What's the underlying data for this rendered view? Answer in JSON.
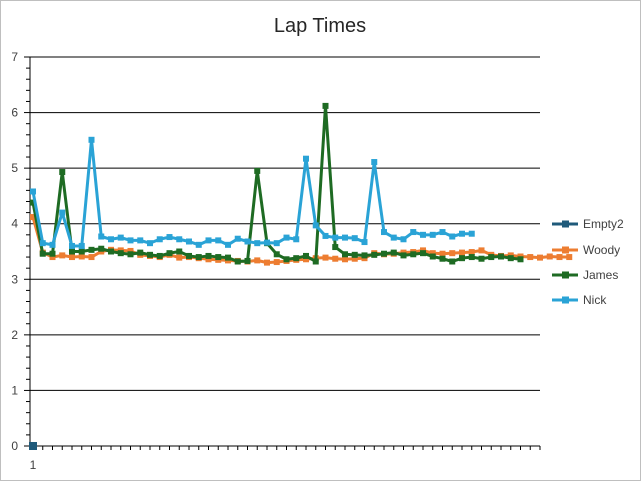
{
  "chart_data": {
    "type": "line",
    "title": "Lap Times",
    "xlabel": "",
    "ylabel": "",
    "ylim": [
      0,
      7
    ],
    "yticks": [
      0,
      1,
      2,
      3,
      4,
      5,
      6,
      7
    ],
    "x_tick_labels": [
      "1"
    ],
    "grid": true,
    "legend_position": "right",
    "series": [
      {
        "name": "Empty2",
        "color": "#1f5a7a",
        "values": [
          0
        ]
      },
      {
        "name": "Woody",
        "color": "#ed7d31",
        "values": [
          4.12,
          3.48,
          3.4,
          3.43,
          3.4,
          3.41,
          3.4,
          3.5,
          3.53,
          3.52,
          3.51,
          3.44,
          3.42,
          3.4,
          3.44,
          3.39,
          3.4,
          3.38,
          3.36,
          3.35,
          3.34,
          3.33,
          3.32,
          3.34,
          3.3,
          3.31,
          3.33,
          3.35,
          3.36,
          3.38,
          3.39,
          3.37,
          3.36,
          3.37,
          3.38,
          3.47,
          3.45,
          3.46,
          3.48,
          3.49,
          3.52,
          3.47,
          3.46,
          3.47,
          3.48,
          3.49,
          3.52,
          3.44,
          3.42,
          3.43,
          3.41,
          3.4,
          3.39,
          3.41,
          3.4,
          3.4
        ]
      },
      {
        "name": "James",
        "color": "#1e6b23",
        "values": [
          4.38,
          3.46,
          3.46,
          4.93,
          3.5,
          3.5,
          3.53,
          3.55,
          3.5,
          3.47,
          3.45,
          3.48,
          3.44,
          3.42,
          3.47,
          3.5,
          3.42,
          3.4,
          3.42,
          3.4,
          3.39,
          3.32,
          3.33,
          4.95,
          3.65,
          3.45,
          3.36,
          3.38,
          3.42,
          3.32,
          6.12,
          3.58,
          3.45,
          3.44,
          3.43,
          3.44,
          3.46,
          3.48,
          3.43,
          3.45,
          3.47,
          3.41,
          3.37,
          3.32,
          3.38,
          3.4,
          3.37,
          3.4,
          3.41,
          3.38,
          3.36
        ]
      },
      {
        "name": "Nick",
        "color": "#2aa3d6",
        "values": [
          4.58,
          3.65,
          3.62,
          4.2,
          3.6,
          3.6,
          5.51,
          3.77,
          3.72,
          3.75,
          3.7,
          3.7,
          3.65,
          3.72,
          3.76,
          3.72,
          3.68,
          3.62,
          3.7,
          3.7,
          3.62,
          3.73,
          3.68,
          3.65,
          3.66,
          3.65,
          3.75,
          3.72,
          5.17,
          3.97,
          3.78,
          3.75,
          3.75,
          3.74,
          3.67,
          5.11,
          3.85,
          3.75,
          3.72,
          3.85,
          3.8,
          3.8,
          3.85,
          3.77,
          3.82,
          3.82
        ]
      }
    ]
  }
}
